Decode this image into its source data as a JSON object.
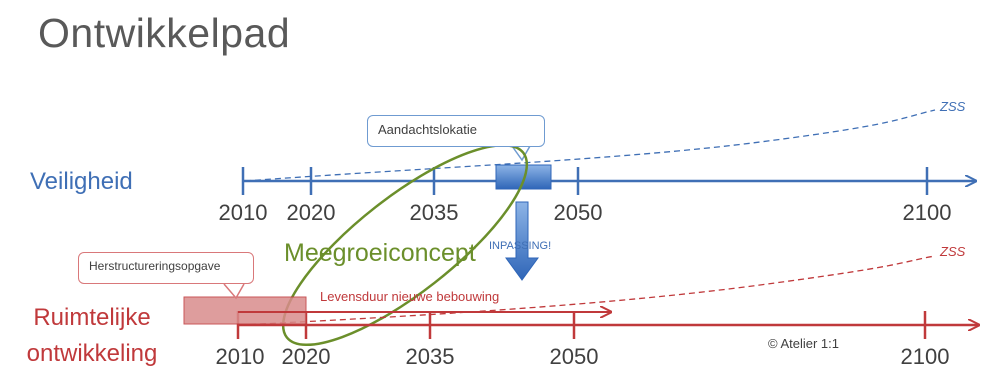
{
  "slide": {
    "title": "Ontwikkelpad"
  },
  "rows": {
    "veiligheid": {
      "label": "Veiligheid",
      "color": "#3f6fb5"
    },
    "ruimte": {
      "label_line1": "Ruimtelijke",
      "label_line2": "ontwikkeling",
      "color": "#c0393b"
    }
  },
  "timeline_top": {
    "years": [
      "2010",
      "2020",
      "2035",
      "2050",
      "2100"
    ],
    "end_label": "ZSS"
  },
  "timeline_bottom": {
    "years": [
      "2010",
      "2020",
      "2035",
      "2050",
      "2100"
    ],
    "end_label": "ZSS"
  },
  "callouts": {
    "aandacht": "Aandachtslokatie",
    "herstructurering": "Herstructureringsopgave"
  },
  "annotations": {
    "concept": "Meegroeiconcept",
    "inpassing": "INPASSING!",
    "levensduur": "Levensduur nieuwe bebouwing",
    "copyright": "© Atelier 1:1"
  },
  "colors": {
    "blue": "#3f6fb5",
    "red": "#c0393b",
    "green": "#6b8f2b",
    "gray_text": "#595959"
  }
}
